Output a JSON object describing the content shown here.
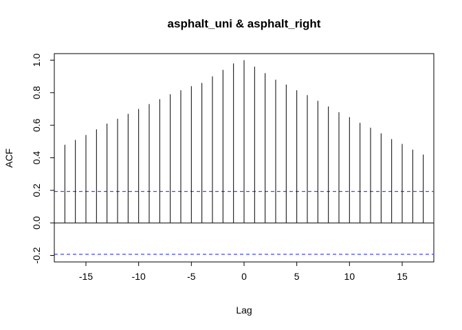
{
  "chart_data": {
    "type": "bar",
    "title": "asphalt_uni & asphalt_right",
    "xlabel": "Lag",
    "ylabel": "ACF",
    "xlim": [
      -18,
      18
    ],
    "ylim": [
      -0.24,
      1.04
    ],
    "x_ticks": [
      -15,
      -10,
      -5,
      0,
      5,
      10,
      15
    ],
    "y_ticks": [
      -0.2,
      0.0,
      0.2,
      0.4,
      0.6,
      0.8,
      1.0
    ],
    "x_tick_labels": [
      "-15",
      "-10",
      "-5",
      "0",
      "5",
      "10",
      "15"
    ],
    "y_tick_labels": [
      "-0.2",
      "0.0",
      "0.2",
      "0.4",
      "0.6",
      "0.8",
      "1.0"
    ],
    "lags": [
      -17,
      -16,
      -15,
      -14,
      -13,
      -12,
      -11,
      -10,
      -9,
      -8,
      -7,
      -6,
      -5,
      -4,
      -3,
      -2,
      -1,
      0,
      1,
      2,
      3,
      4,
      5,
      6,
      7,
      8,
      9,
      10,
      11,
      12,
      13,
      14,
      15,
      16,
      17
    ],
    "values": [
      0.48,
      0.51,
      0.54,
      0.575,
      0.61,
      0.64,
      0.67,
      0.7,
      0.73,
      0.76,
      0.79,
      0.815,
      0.84,
      0.86,
      0.9,
      0.94,
      0.98,
      1.0,
      0.96,
      0.92,
      0.88,
      0.85,
      0.815,
      0.785,
      0.75,
      0.715,
      0.68,
      0.65,
      0.615,
      0.585,
      0.55,
      0.515,
      0.485,
      0.45,
      0.42
    ],
    "confidence_bounds": [
      0.193,
      -0.193
    ],
    "colors": {
      "bars": "#000000",
      "ci": "#4040ff",
      "zero_line": "#000000"
    },
    "grid": false,
    "legend": "none"
  }
}
